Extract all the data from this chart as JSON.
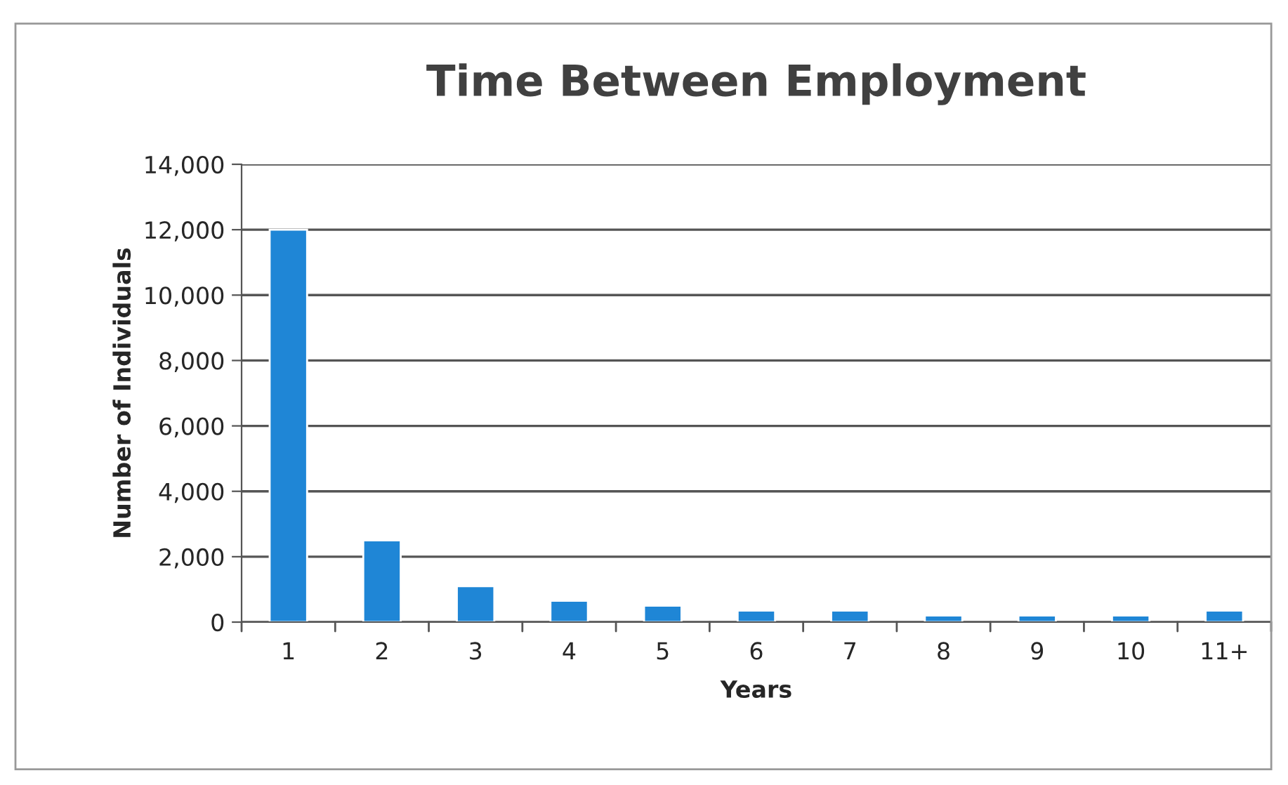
{
  "chart_data": {
    "type": "bar",
    "title": "Time Between Employment",
    "xlabel": "Years",
    "ylabel": "Number of Individuals",
    "categories": [
      "1",
      "2",
      "3",
      "4",
      "5",
      "6",
      "7",
      "8",
      "9",
      "10",
      "11+"
    ],
    "values": [
      12000,
      2500,
      1100,
      650,
      500,
      350,
      350,
      200,
      200,
      200,
      350
    ],
    "color": "#1f86d6",
    "ylim": [
      0,
      14000
    ],
    "yticks": [
      {
        "value": 0,
        "label": "0"
      },
      {
        "value": 2000,
        "label": "2,000"
      },
      {
        "value": 4000,
        "label": "4,000"
      },
      {
        "value": 6000,
        "label": "6,000"
      },
      {
        "value": 8000,
        "label": "8,000"
      },
      {
        "value": 10000,
        "label": "10,000"
      },
      {
        "value": 12000,
        "label": "12,000"
      },
      {
        "value": 14000,
        "label": "14,000"
      }
    ],
    "grid": "y",
    "legend": false
  }
}
